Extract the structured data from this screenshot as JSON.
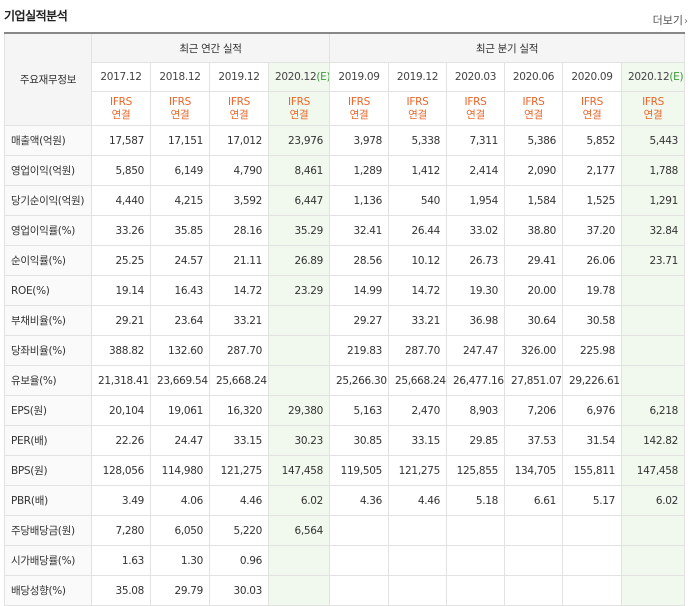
{
  "title": "기업실적분석",
  "more_label": "더보기",
  "corner_label": "주요재무정보",
  "annual_group": "최근 연간 실적",
  "quarter_group": "최근 분기 실적",
  "periods": [
    {
      "label": "2017.12"
    },
    {
      "label": "2018.12"
    },
    {
      "label": "2019.12"
    },
    {
      "label": "2020.12",
      "est": "(E)"
    },
    {
      "label": "2019.09"
    },
    {
      "label": "2019.12"
    },
    {
      "label": "2020.03"
    },
    {
      "label": "2020.06"
    },
    {
      "label": "2020.09"
    },
    {
      "label": "2020.12",
      "est": "(E)"
    }
  ],
  "basis_top": "IFRS",
  "basis_bottom": "연결",
  "rows": [
    {
      "label": "매출액(억원)",
      "values": [
        "17,587",
        "17,151",
        "17,012",
        "23,976",
        "3,978",
        "5,338",
        "7,311",
        "5,386",
        "5,852",
        "5,443"
      ]
    },
    {
      "label": "영업이익(억원)",
      "values": [
        "5,850",
        "6,149",
        "4,790",
        "8,461",
        "1,289",
        "1,412",
        "2,414",
        "2,090",
        "2,177",
        "1,788"
      ]
    },
    {
      "label": "당기순이익(억원)",
      "values": [
        "4,440",
        "4,215",
        "3,592",
        "6,447",
        "1,136",
        "540",
        "1,954",
        "1,584",
        "1,525",
        "1,291"
      ]
    },
    {
      "label": "영업이익률(%)",
      "values": [
        "33.26",
        "35.85",
        "28.16",
        "35.29",
        "32.41",
        "26.44",
        "33.02",
        "38.80",
        "37.20",
        "32.84"
      ]
    },
    {
      "label": "순이익률(%)",
      "values": [
        "25.25",
        "24.57",
        "21.11",
        "26.89",
        "28.56",
        "10.12",
        "26.73",
        "29.41",
        "26.06",
        "23.71"
      ]
    },
    {
      "label": "ROE(%)",
      "values": [
        "19.14",
        "16.43",
        "14.72",
        "23.29",
        "14.99",
        "14.72",
        "19.30",
        "20.00",
        "19.78",
        ""
      ]
    },
    {
      "label": "부채비율(%)",
      "values": [
        "29.21",
        "23.64",
        "33.21",
        "",
        "29.27",
        "33.21",
        "36.98",
        "30.64",
        "30.58",
        ""
      ]
    },
    {
      "label": "당좌비율(%)",
      "values": [
        "388.82",
        "132.60",
        "287.70",
        "",
        "219.83",
        "287.70",
        "247.47",
        "326.00",
        "225.98",
        ""
      ]
    },
    {
      "label": "유보율(%)",
      "values": [
        "21,318.41",
        "23,669.54",
        "25,668.24",
        "",
        "25,266.30",
        "25,668.24",
        "26,477.16",
        "27,851.07",
        "29,226.61",
        ""
      ]
    },
    {
      "label": "EPS(원)",
      "values": [
        "20,104",
        "19,061",
        "16,320",
        "29,380",
        "5,163",
        "2,470",
        "8,903",
        "7,206",
        "6,976",
        "6,218"
      ]
    },
    {
      "label": "PER(배)",
      "values": [
        "22.26",
        "24.47",
        "33.15",
        "30.23",
        "30.85",
        "33.15",
        "29.85",
        "37.53",
        "31.54",
        "142.82"
      ]
    },
    {
      "label": "BPS(원)",
      "values": [
        "128,056",
        "114,980",
        "121,275",
        "147,458",
        "119,505",
        "121,275",
        "125,855",
        "134,705",
        "155,811",
        "147,458"
      ]
    },
    {
      "label": "PBR(배)",
      "values": [
        "3.49",
        "4.06",
        "4.46",
        "6.02",
        "4.36",
        "4.46",
        "5.18",
        "6.61",
        "5.17",
        "6.02"
      ]
    },
    {
      "label": "주당배당금(원)",
      "values": [
        "7,280",
        "6,050",
        "5,220",
        "6,564",
        "",
        "",
        "",
        "",
        "",
        ""
      ]
    },
    {
      "label": "시가배당률(%)",
      "values": [
        "1.63",
        "1.30",
        "0.96",
        "",
        "",
        "",
        "",
        "",
        "",
        ""
      ]
    },
    {
      "label": "배당성향(%)",
      "values": [
        "35.08",
        "29.79",
        "30.03",
        "",
        "",
        "",
        "",
        "",
        "",
        ""
      ]
    }
  ],
  "colors": {
    "ifrs": "#e8662a",
    "estimate_bg": "#f1f8ee",
    "estimate_mark": "#3c9a3c"
  }
}
